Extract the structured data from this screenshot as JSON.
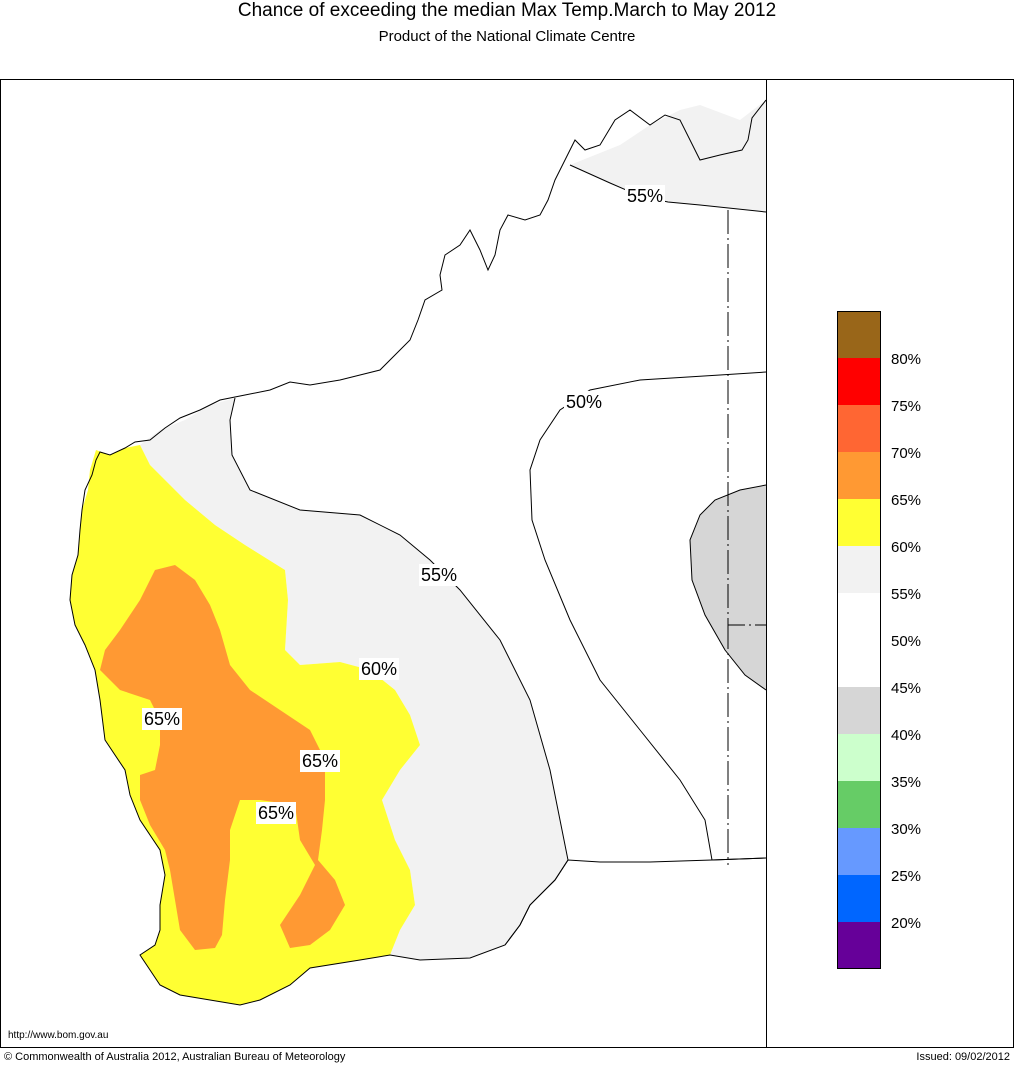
{
  "header": {
    "title": "Chance of exceeding the median Max Temp.March to May 2012",
    "subtitle": "Product of the National Climate Centre"
  },
  "map": {
    "contour_labels": [
      "55%",
      "50%",
      "55%",
      "60%",
      "65%",
      "65%",
      "65%"
    ],
    "colors": {
      "band_40_45": "#d6d6d6",
      "band_55_60": "#f2f2f2",
      "band_60_65": "#ffff33",
      "band_65_70": "#ff9933"
    }
  },
  "legend": {
    "labels": [
      "80%",
      "75%",
      "70%",
      "65%",
      "60%",
      "55%",
      "50%",
      "45%",
      "40%",
      "35%",
      "30%",
      "25%",
      "20%"
    ],
    "colors": [
      "#996619",
      "#ff0000",
      "#ff6633",
      "#ff9933",
      "#ffff33",
      "#f2f2f2",
      "#ffffff",
      "#ffffff",
      "#d6d6d6",
      "#ccffcc",
      "#66cc66",
      "#6699ff",
      "#0066ff",
      "#660099"
    ]
  },
  "footer": {
    "url": "http://www.bom.gov.au",
    "copyright": "© Commonwealth of Australia 2012, Australian Bureau of Meteorology",
    "issued": "Issued: 09/02/2012"
  }
}
